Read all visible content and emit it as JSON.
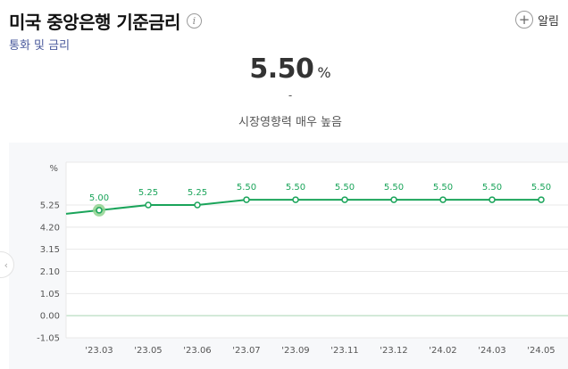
{
  "header": {
    "title": "미국 중앙은행 기준금리",
    "info_icon": "info-icon",
    "category": "통화 및 금리",
    "alert_label": "알림",
    "alert_icon": "plus-icon"
  },
  "summary": {
    "value": "5.50",
    "unit": "%",
    "change": "-",
    "impact": "시장영향력 매우 높음"
  },
  "colors": {
    "line": "#1aa45a",
    "highlight": "#8fd48f",
    "grid": "#e8e8e8",
    "zero_line": "#a7d5b3",
    "panel_bg": "#f7f8fa"
  },
  "chart_data": {
    "type": "line",
    "y_unit_label": "%",
    "y_ticks": [
      "5.25",
      "4.20",
      "3.15",
      "2.10",
      "1.05",
      "0.00",
      "-1.05"
    ],
    "y_tick_values": [
      5.25,
      4.2,
      3.15,
      2.1,
      1.05,
      0.0,
      -1.05
    ],
    "x_ticks": [
      "'23.03",
      "'23.05",
      "'23.06",
      "'23.07",
      "'23.09",
      "'23.11",
      "'23.12",
      "'24.02",
      "'24.03",
      "'24.05"
    ],
    "values": [
      5.0,
      5.25,
      5.25,
      5.5,
      5.5,
      5.5,
      5.5,
      5.5,
      5.5,
      5.5
    ],
    "value_labels": [
      "5.00",
      "5.25",
      "5.25",
      "5.50",
      "5.50",
      "5.50",
      "5.50",
      "5.50",
      "5.50",
      "5.50"
    ],
    "ylim": [
      -1.05,
      5.25
    ],
    "grid": true,
    "highlighted_index": 0
  }
}
